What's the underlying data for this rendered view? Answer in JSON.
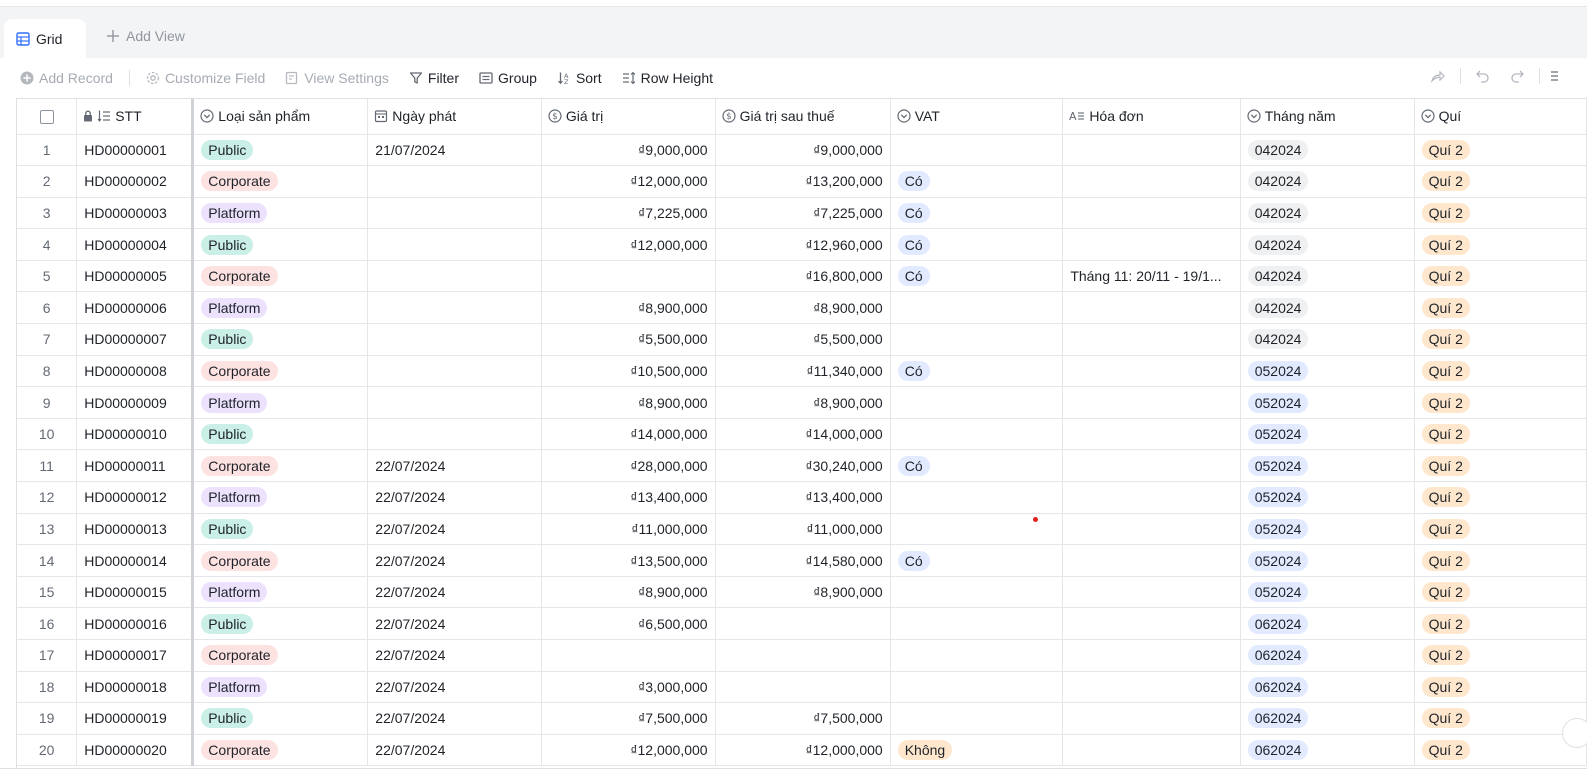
{
  "views": {
    "active_tab": "Grid",
    "add_view_label": "Add View"
  },
  "toolbar": {
    "add_record": "Add Record",
    "customize_field": "Customize Field",
    "view_settings": "View Settings",
    "filter": "Filter",
    "group": "Group",
    "sort": "Sort",
    "row_height": "Row Height"
  },
  "columns": {
    "stt": "STT",
    "loai": "Loại sản phẩm",
    "ngay": "Ngày phát",
    "gia": "Giá trị",
    "sau": "Giá trị sau thuế",
    "vat": "VAT",
    "hoa": "Hóa đơn",
    "thang": "Tháng năm",
    "qui": "Quí"
  },
  "tag_colors": {
    "Public": "#c9efe6",
    "Corporate": "#fde2e2",
    "Platform": "#ece2fe",
    "Có": "#e1eaff",
    "Không": "#fee7cd",
    "042024": "#eff0f1",
    "052024": "#e1eaff",
    "062024": "#e1eaff",
    "Quí 2": "#fee7cd"
  },
  "rows": [
    {
      "n": "1",
      "stt": "HD00000001",
      "loai": "Public",
      "ngay": "21/07/2024",
      "gia": "₫9,000,000",
      "sau": "₫9,000,000",
      "vat": "",
      "hoa": "",
      "thang": "042024",
      "qui": "Quí 2"
    },
    {
      "n": "2",
      "stt": "HD00000002",
      "loai": "Corporate",
      "ngay": "",
      "gia": "₫12,000,000",
      "sau": "₫13,200,000",
      "vat": "Có",
      "hoa": "",
      "thang": "042024",
      "qui": "Quí 2"
    },
    {
      "n": "3",
      "stt": "HD00000003",
      "loai": "Platform",
      "ngay": "",
      "gia": "₫7,225,000",
      "sau": "₫7,225,000",
      "vat": "Có",
      "hoa": "",
      "thang": "042024",
      "qui": "Quí 2"
    },
    {
      "n": "4",
      "stt": "HD00000004",
      "loai": "Public",
      "ngay": "",
      "gia": "₫12,000,000",
      "sau": "₫12,960,000",
      "vat": "Có",
      "hoa": "",
      "thang": "042024",
      "qui": "Quí 2"
    },
    {
      "n": "5",
      "stt": "HD00000005",
      "loai": "Corporate",
      "ngay": "",
      "gia": "",
      "sau": "₫16,800,000",
      "vat": "Có",
      "hoa": "Tháng 11: 20/11 - 19/1...",
      "thang": "042024",
      "qui": "Quí 2"
    },
    {
      "n": "6",
      "stt": "HD00000006",
      "loai": "Platform",
      "ngay": "",
      "gia": "₫8,900,000",
      "sau": "₫8,900,000",
      "vat": "",
      "hoa": "",
      "thang": "042024",
      "qui": "Quí 2"
    },
    {
      "n": "7",
      "stt": "HD00000007",
      "loai": "Public",
      "ngay": "",
      "gia": "₫5,500,000",
      "sau": "₫5,500,000",
      "vat": "",
      "hoa": "",
      "thang": "042024",
      "qui": "Quí 2"
    },
    {
      "n": "8",
      "stt": "HD00000008",
      "loai": "Corporate",
      "ngay": "",
      "gia": "₫10,500,000",
      "sau": "₫11,340,000",
      "vat": "Có",
      "hoa": "",
      "thang": "052024",
      "qui": "Quí 2"
    },
    {
      "n": "9",
      "stt": "HD00000009",
      "loai": "Platform",
      "ngay": "",
      "gia": "₫8,900,000",
      "sau": "₫8,900,000",
      "vat": "",
      "hoa": "",
      "thang": "052024",
      "qui": "Quí 2"
    },
    {
      "n": "10",
      "stt": "HD00000010",
      "loai": "Public",
      "ngay": "",
      "gia": "₫14,000,000",
      "sau": "₫14,000,000",
      "vat": "",
      "hoa": "",
      "thang": "052024",
      "qui": "Quí 2"
    },
    {
      "n": "11",
      "stt": "HD00000011",
      "loai": "Corporate",
      "ngay": "22/07/2024",
      "gia": "₫28,000,000",
      "sau": "₫30,240,000",
      "vat": "Có",
      "hoa": "",
      "thang": "052024",
      "qui": "Quí 2"
    },
    {
      "n": "12",
      "stt": "HD00000012",
      "loai": "Platform",
      "ngay": "22/07/2024",
      "gia": "₫13,400,000",
      "sau": "₫13,400,000",
      "vat": "",
      "hoa": "",
      "thang": "052024",
      "qui": "Quí 2"
    },
    {
      "n": "13",
      "stt": "HD00000013",
      "loai": "Public",
      "ngay": "22/07/2024",
      "gia": "₫11,000,000",
      "sau": "₫11,000,000",
      "vat": "",
      "hoa": "",
      "thang": "052024",
      "qui": "Quí 2"
    },
    {
      "n": "14",
      "stt": "HD00000014",
      "loai": "Corporate",
      "ngay": "22/07/2024",
      "gia": "₫13,500,000",
      "sau": "₫14,580,000",
      "vat": "Có",
      "hoa": "",
      "thang": "052024",
      "qui": "Quí 2"
    },
    {
      "n": "15",
      "stt": "HD00000015",
      "loai": "Platform",
      "ngay": "22/07/2024",
      "gia": "₫8,900,000",
      "sau": "₫8,900,000",
      "vat": "",
      "hoa": "",
      "thang": "052024",
      "qui": "Quí 2"
    },
    {
      "n": "16",
      "stt": "HD00000016",
      "loai": "Public",
      "ngay": "22/07/2024",
      "gia": "₫6,500,000",
      "sau": "",
      "vat": "",
      "hoa": "",
      "thang": "062024",
      "qui": "Quí 2"
    },
    {
      "n": "17",
      "stt": "HD00000017",
      "loai": "Corporate",
      "ngay": "22/07/2024",
      "gia": "",
      "sau": "",
      "vat": "",
      "hoa": "",
      "thang": "062024",
      "qui": "Quí 2"
    },
    {
      "n": "18",
      "stt": "HD00000018",
      "loai": "Platform",
      "ngay": "22/07/2024",
      "gia": "₫3,000,000",
      "sau": "",
      "vat": "",
      "hoa": "",
      "thang": "062024",
      "qui": "Quí 2"
    },
    {
      "n": "19",
      "stt": "HD00000019",
      "loai": "Public",
      "ngay": "22/07/2024",
      "gia": "₫7,500,000",
      "sau": "₫7,500,000",
      "vat": "",
      "hoa": "",
      "thang": "062024",
      "qui": "Quí 2"
    },
    {
      "n": "20",
      "stt": "HD00000020",
      "loai": "Corporate",
      "ngay": "22/07/2024",
      "gia": "₫12,000,000",
      "sau": "₫12,000,000",
      "vat": "Không",
      "hoa": "",
      "thang": "062024",
      "qui": "Quí 2"
    }
  ]
}
